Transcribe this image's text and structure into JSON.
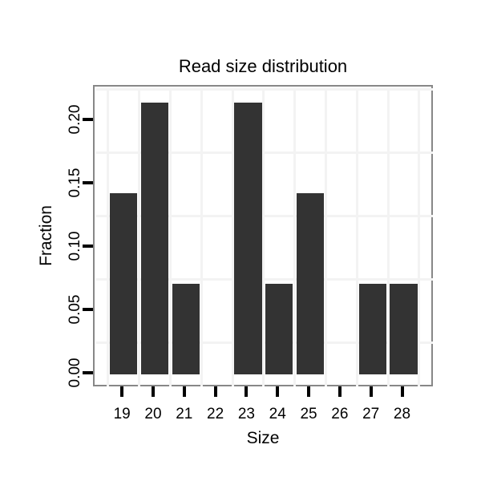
{
  "chart_data": {
    "type": "bar",
    "title": "Read size distribution",
    "xlabel": "Size",
    "ylabel": "Fraction",
    "categories": [
      "19",
      "20",
      "21",
      "22",
      "23",
      "24",
      "25",
      "26",
      "27",
      "28"
    ],
    "x_values": [
      19,
      20,
      21,
      22,
      23,
      24,
      25,
      26,
      27,
      28
    ],
    "values": [
      0.1429,
      0.2143,
      0.0714,
      0,
      0.2143,
      0.0714,
      0.1429,
      0,
      0.0714,
      0.0714
    ],
    "y_ticks": [
      {
        "value": 0.0,
        "label": "0.00"
      },
      {
        "value": 0.05,
        "label": "0.05"
      },
      {
        "value": 0.1,
        "label": "0.10"
      },
      {
        "value": 0.15,
        "label": "0.15"
      },
      {
        "value": 0.2,
        "label": "0.20"
      }
    ],
    "xlim": [
      18.12,
      28.94
    ],
    "ylim": [
      -0.0095,
      0.2259
    ],
    "bar_width": 0.88,
    "grid": {
      "minor_x": [
        18.5,
        19.5,
        20.5,
        21.5,
        22.5,
        23.5,
        24.5,
        25.5,
        26.5,
        27.5,
        28.5
      ],
      "minor_y": [
        0.025,
        0.075,
        0.125,
        0.175,
        0.225
      ],
      "major_visible": false
    },
    "legend": "none",
    "colors": {
      "bar": "#333333",
      "grid": "#f3f3f3",
      "panel_border": "#878787",
      "tick": "#000000",
      "text": "#000000",
      "background": "#ffffff"
    }
  }
}
